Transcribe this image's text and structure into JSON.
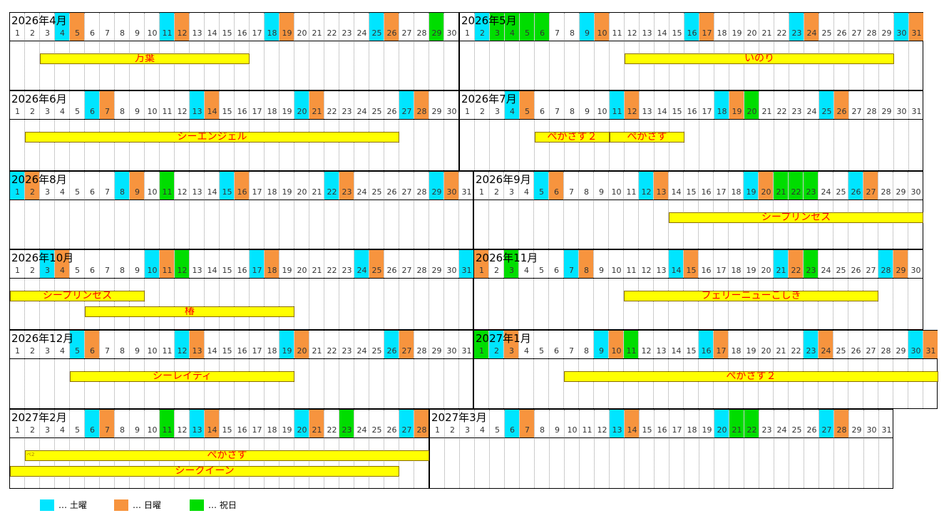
{
  "colors": {
    "saturday": "#00e5ff",
    "sunday": "#f7943e",
    "holiday": "#00dd00",
    "bar_fill": "#ffff00",
    "bar_text": "#ff0000"
  },
  "months": [
    {
      "title": "2026年4月",
      "days": 30,
      "first_dow": 3,
      "holidays": [
        29
      ],
      "bars": [
        {
          "label": "万葉",
          "start": 3,
          "end": 16,
          "lane": 0
        }
      ]
    },
    {
      "title": "2026年5月",
      "days": 31,
      "first_dow": 5,
      "holidays": [
        3,
        4,
        5,
        6
      ],
      "bars": [
        {
          "label": "いのり",
          "start": 12,
          "end": 29,
          "lane": 0
        }
      ]
    },
    {
      "title": "2026年6月",
      "days": 30,
      "first_dow": 1,
      "holidays": [],
      "bars": [
        {
          "label": "シーエンジェル",
          "start": 2,
          "end": 26,
          "lane": 0
        }
      ]
    },
    {
      "title": "2026年7月",
      "days": 31,
      "first_dow": 3,
      "holidays": [
        20
      ],
      "bars": [
        {
          "label": "ぺがさす２",
          "start": 6,
          "end": 10,
          "lane": 0
        },
        {
          "label": "ぺがさす",
          "start": 11,
          "end": 15,
          "lane": 0
        }
      ]
    },
    {
      "title": "2026年8月",
      "days": 31,
      "first_dow": 6,
      "holidays": [
        11
      ],
      "bars": []
    },
    {
      "title": "2026年9月",
      "days": 30,
      "first_dow": 2,
      "holidays": [
        21,
        22,
        23
      ],
      "bars": [
        {
          "label": "シープリンセス",
          "start": 14,
          "end": 30,
          "lane": 0
        }
      ]
    },
    {
      "title": "2026年10月",
      "days": 31,
      "first_dow": 4,
      "holidays": [
        12
      ],
      "bars": [
        {
          "label": "シープリンセス",
          "start": 1,
          "end": 9,
          "lane": 0
        },
        {
          "label": "椿",
          "start": 6,
          "end": 19,
          "lane": 1
        }
      ]
    },
    {
      "title": "2026年11月",
      "days": 30,
      "first_dow": 0,
      "holidays": [
        3,
        23
      ],
      "bars": [
        {
          "label": "フェリーニューこしき",
          "start": 11,
          "end": 27,
          "lane": 0
        }
      ]
    },
    {
      "title": "2026年12月",
      "days": 31,
      "first_dow": 2,
      "holidays": [],
      "bars": [
        {
          "label": "シーレイディ",
          "start": 5,
          "end": 19,
          "lane": 0
        }
      ]
    },
    {
      "title": "2027年1月",
      "days": 31,
      "first_dow": 5,
      "holidays": [
        1,
        11
      ],
      "bars": [
        {
          "label": "ぺがさす２",
          "start": 7,
          "end": 31,
          "lane": 0
        }
      ]
    },
    {
      "title": "2027年2月",
      "days": 28,
      "first_dow": 1,
      "holidays": [
        11,
        23
      ],
      "bars": [
        {
          "label": "ぺがさす",
          "start": 2,
          "end": 28,
          "lane": 0,
          "note": "ペ2"
        },
        {
          "label": "シークイーン",
          "start": 1,
          "end": 26,
          "lane": 1
        }
      ]
    },
    {
      "title": "2027年3月",
      "days": 31,
      "first_dow": 1,
      "holidays": [
        21,
        22
      ],
      "bars": []
    }
  ],
  "legend": [
    {
      "color": "#00e5ff",
      "label": "… 土曜",
      "icon": "saturday-swatch"
    },
    {
      "color": "#f7943e",
      "label": "… 日曜",
      "icon": "sunday-swatch"
    },
    {
      "color": "#00dd00",
      "label": "… 祝日",
      "icon": "holiday-swatch"
    }
  ]
}
